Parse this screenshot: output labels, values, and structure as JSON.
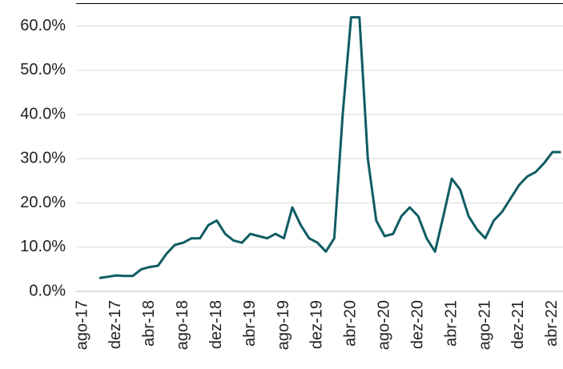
{
  "chart_data": {
    "type": "line",
    "categories": [
      "ago-17",
      null,
      null,
      null,
      "dez-17",
      null,
      null,
      null,
      "abr-18",
      null,
      null,
      null,
      "ago-18",
      null,
      null,
      null,
      "dez-18",
      null,
      null,
      null,
      "abr-19",
      null,
      null,
      null,
      "ago-19",
      null,
      null,
      null,
      "dez-19",
      null,
      null,
      null,
      "abr-20",
      null,
      null,
      null,
      "ago-20",
      null,
      null,
      null,
      "dez-20",
      null,
      null,
      null,
      "abr-21",
      null,
      null,
      null,
      "ago-21",
      null,
      null,
      null,
      "dez-21",
      null,
      null,
      null,
      "abr-22",
      null
    ],
    "series": [
      {
        "color": "#0f5c63",
        "values": [
          null,
          null,
          3.0,
          3.3,
          3.6,
          3.5,
          3.5,
          5.0,
          5.5,
          5.8,
          8.5,
          10.5,
          11,
          12,
          12,
          15,
          16,
          13,
          11.5,
          11,
          13,
          12.5,
          12,
          13,
          12,
          19,
          15,
          12,
          11,
          9,
          12,
          40,
          62,
          62,
          30,
          16,
          12.5,
          13,
          17,
          19,
          17,
          12,
          9,
          17,
          25.5,
          23,
          17,
          14,
          12,
          16,
          18,
          21,
          24,
          26,
          27,
          29,
          31.5,
          31.5
        ]
      }
    ],
    "ylim": [
      0,
      65
    ],
    "yticks": [
      {
        "value": 0,
        "label": "0.0%"
      },
      {
        "value": 10,
        "label": "10.0%"
      },
      {
        "value": 20,
        "label": "20.0%"
      },
      {
        "value": 30,
        "label": "30.0%"
      },
      {
        "value": 40,
        "label": "40.0%"
      },
      {
        "value": 50,
        "label": "50.0%"
      },
      {
        "value": 60,
        "label": "60.0%"
      }
    ],
    "grid": true
  }
}
